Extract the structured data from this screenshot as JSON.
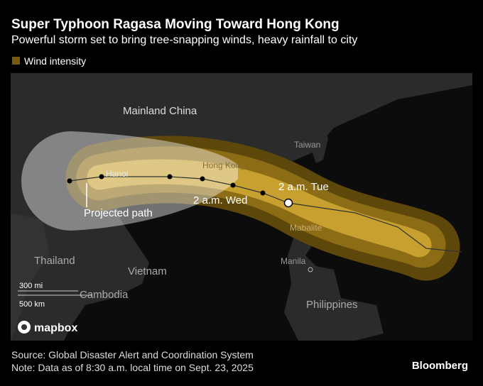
{
  "header": {
    "title": "Super Typhoon Ragasa Moving Toward Hong Kong",
    "subtitle": "Powerful storm set to bring tree-snapping winds, heavy rainfall to city",
    "legend": "Wind intensity"
  },
  "map": {
    "labels": {
      "china": "Mainland China",
      "taiwan": "Taiwan",
      "hong_kong": "Hong Kong",
      "hanoi": "Hanoi",
      "tue": "2 a.m. Tue",
      "wed": "2 a.m. Wed",
      "path": "Projected path",
      "mabalite": "Mabalite",
      "manila": "Manila",
      "thailand": "Thailand",
      "vietnam": "Vietnam",
      "cambodia": "Cambodia",
      "philippines": "Philippines"
    },
    "scale": {
      "mi": "300 mi",
      "km": "500 km"
    },
    "attribution": "mapbox"
  },
  "footer": {
    "source": "Source: Global Disaster Alert and Coordination System",
    "note": "Note: Data as of 8:30 a.m. local time on Sept. 23, 2025",
    "brand": "Bloomberg"
  }
}
